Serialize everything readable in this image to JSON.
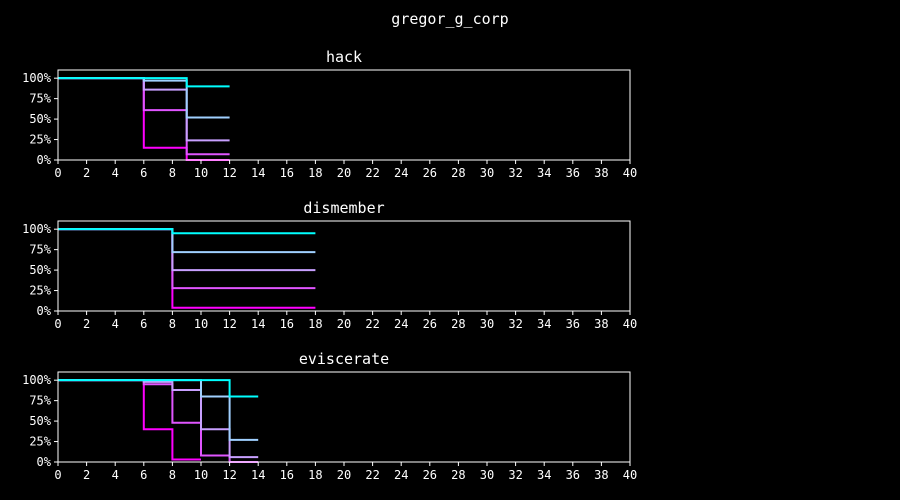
{
  "figure_title": "gregor_g_corp",
  "chart_data": [
    {
      "type": "line",
      "step": true,
      "title": "hack",
      "xlim": [
        0,
        40
      ],
      "ylim": [
        0,
        1.1
      ],
      "x_ticks": [
        0,
        2,
        4,
        6,
        8,
        10,
        12,
        14,
        16,
        18,
        20,
        22,
        24,
        26,
        28,
        30,
        32,
        34,
        36,
        38,
        40
      ],
      "y_ticks": [
        0,
        0.25,
        0.5,
        0.75,
        1.0
      ],
      "y_tick_labels": [
        "0%",
        "25%",
        "50%",
        "75%",
        "100%"
      ],
      "grid": false,
      "series": [
        {
          "color": "#ff00ff",
          "x": [
            0,
            6,
            9,
            12
          ],
          "y": [
            1.0,
            0.15,
            0.0,
            0.0
          ]
        },
        {
          "color": "#e055ff",
          "x": [
            0,
            6,
            9,
            12
          ],
          "y": [
            1.0,
            0.61,
            0.07,
            0.07
          ]
        },
        {
          "color": "#c8a0ff",
          "x": [
            0,
            6,
            9,
            12
          ],
          "y": [
            1.0,
            0.86,
            0.24,
            0.24
          ]
        },
        {
          "color": "#a0d0ff",
          "x": [
            0,
            6,
            9,
            12
          ],
          "y": [
            1.0,
            0.97,
            0.52,
            0.52
          ]
        },
        {
          "color": "#00ffff",
          "x": [
            0,
            6,
            9,
            12
          ],
          "y": [
            1.0,
            1.0,
            0.9,
            0.9
          ]
        }
      ]
    },
    {
      "type": "line",
      "step": true,
      "title": "dismember",
      "xlim": [
        0,
        40
      ],
      "ylim": [
        0,
        1.1
      ],
      "x_ticks": [
        0,
        2,
        4,
        6,
        8,
        10,
        12,
        14,
        16,
        18,
        20,
        22,
        24,
        26,
        28,
        30,
        32,
        34,
        36,
        38,
        40
      ],
      "y_ticks": [
        0,
        0.25,
        0.5,
        0.75,
        1.0
      ],
      "y_tick_labels": [
        "0%",
        "25%",
        "50%",
        "75%",
        "100%"
      ],
      "grid": false,
      "series": [
        {
          "color": "#ff00ff",
          "x": [
            0,
            8,
            18
          ],
          "y": [
            1.0,
            0.04,
            0.04
          ]
        },
        {
          "color": "#e055ff",
          "x": [
            0,
            8,
            18
          ],
          "y": [
            1.0,
            0.28,
            0.28
          ]
        },
        {
          "color": "#c8a0ff",
          "x": [
            0,
            8,
            18
          ],
          "y": [
            1.0,
            0.5,
            0.5
          ]
        },
        {
          "color": "#a0d0ff",
          "x": [
            0,
            8,
            18
          ],
          "y": [
            1.0,
            0.72,
            0.72
          ]
        },
        {
          "color": "#00ffff",
          "x": [
            0,
            8,
            18
          ],
          "y": [
            1.0,
            0.95,
            0.95
          ]
        }
      ]
    },
    {
      "type": "line",
      "step": true,
      "title": "eviscerate",
      "xlim": [
        0,
        40
      ],
      "ylim": [
        0,
        1.1
      ],
      "x_ticks": [
        0,
        2,
        4,
        6,
        8,
        10,
        12,
        14,
        16,
        18,
        20,
        22,
        24,
        26,
        28,
        30,
        32,
        34,
        36,
        38,
        40
      ],
      "y_ticks": [
        0,
        0.25,
        0.5,
        0.75,
        1.0
      ],
      "y_tick_labels": [
        "0%",
        "25%",
        "50%",
        "75%",
        "100%"
      ],
      "grid": false,
      "series": [
        {
          "color": "#ff00ff",
          "x": [
            0,
            6,
            8,
            10
          ],
          "y": [
            1.0,
            0.4,
            0.03,
            0.03
          ]
        },
        {
          "color": "#e055ff",
          "x": [
            0,
            6,
            8,
            10,
            12,
            14
          ],
          "y": [
            1.0,
            0.95,
            0.48,
            0.08,
            0.0,
            0.0
          ]
        },
        {
          "color": "#c8a0ff",
          "x": [
            0,
            6,
            8,
            10,
            12,
            14
          ],
          "y": [
            1.0,
            0.98,
            0.88,
            0.4,
            0.06,
            0.06
          ]
        },
        {
          "color": "#a0d0ff",
          "x": [
            0,
            8,
            10,
            12,
            14
          ],
          "y": [
            1.0,
            1.0,
            0.8,
            0.27,
            0.27
          ]
        },
        {
          "color": "#00ffff",
          "x": [
            0,
            12,
            14
          ],
          "y": [
            1.0,
            0.8,
            0.8
          ]
        }
      ]
    }
  ]
}
